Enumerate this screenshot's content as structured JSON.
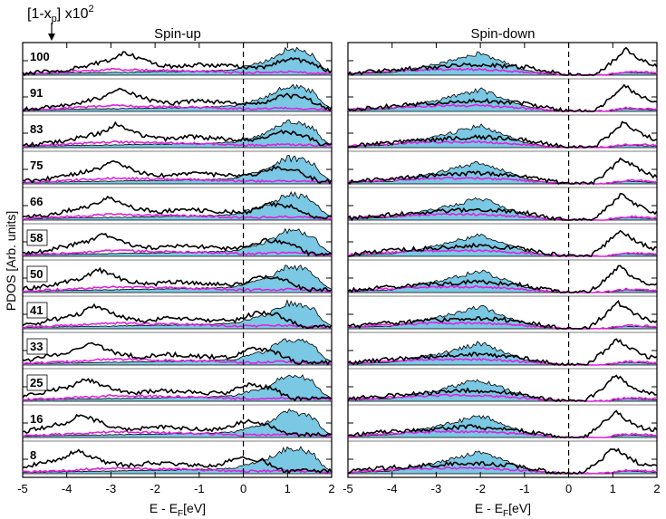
{
  "header": {
    "label_main": "[1-x",
    "label_sub": "p",
    "label_rest": "] x10",
    "label_sup": "2",
    "arrow": "down-arrow"
  },
  "ylabel": "PDOS  [Arb. units]",
  "xlabel": {
    "main": "E - E",
    "sub": "F",
    "rest": "[eV]"
  },
  "colors": {
    "fill": "#7ac8e3",
    "black_curve": "#000000",
    "magenta_curve": "#e020e0",
    "fermi_line": "#000000"
  },
  "chart_data": [
    {
      "type": "line",
      "title": "Spin-up",
      "xlim": [
        -5,
        2
      ],
      "xticks": [
        "-5",
        "-4",
        "-3",
        "-2",
        "-1",
        "0",
        "1",
        "2"
      ],
      "fermi_level": 0,
      "rows": [
        "100",
        "91",
        "83",
        "75",
        "66",
        "58",
        "50",
        "41",
        "33",
        "25",
        "16",
        "8"
      ],
      "boxed_rows": [
        "58",
        "50",
        "41",
        "33",
        "25"
      ],
      "series": [
        {
          "style": "filled",
          "description_points": [
            [
              -5,
              0.05
            ],
            [
              -3,
              0.1
            ],
            [
              -1,
              0.15
            ],
            [
              -0.2,
              0.2
            ],
            [
              0,
              0.3
            ],
            [
              0.5,
              0.5
            ],
            [
              0.8,
              0.8
            ],
            [
              1.0,
              0.95
            ],
            [
              1.3,
              0.9
            ],
            [
              1.6,
              0.7
            ],
            [
              1.8,
              0.3
            ],
            [
              2,
              0.1
            ]
          ]
        },
        {
          "style": "black",
          "description_points": [
            [
              -5,
              0.05
            ],
            [
              -4,
              0.2
            ],
            [
              -3,
              0.55
            ],
            [
              -2.7,
              0.85
            ],
            [
              -2,
              0.4
            ],
            [
              -1.5,
              0.3
            ],
            [
              -1,
              0.4
            ],
            [
              0,
              0.3
            ],
            [
              0.5,
              0.3
            ],
            [
              1.0,
              0.6
            ],
            [
              1.5,
              0.5
            ],
            [
              2,
              0.1
            ]
          ]
        },
        {
          "style": "magenta",
          "description_points": [
            [
              -5,
              0.1
            ],
            [
              -4,
              0.2
            ],
            [
              -3,
              0.35
            ],
            [
              -2,
              0.3
            ],
            [
              -1,
              0.25
            ],
            [
              0,
              0.15
            ],
            [
              1.0,
              0.2
            ],
            [
              2,
              0.1
            ]
          ]
        }
      ]
    },
    {
      "type": "line",
      "title": "Spin-down",
      "xlim": [
        -5,
        2
      ],
      "xticks": [
        "-5",
        "-4",
        "-3",
        "-2",
        "-1",
        "0",
        "1",
        "2"
      ],
      "fermi_level": 0,
      "rows": [
        "100",
        "91",
        "83",
        "75",
        "66",
        "58",
        "50",
        "41",
        "33",
        "25",
        "16",
        "8"
      ],
      "series": [
        {
          "style": "filled",
          "description_points": [
            [
              -5,
              0.05
            ],
            [
              -4,
              0.1
            ],
            [
              -3,
              0.4
            ],
            [
              -2.5,
              0.6
            ],
            [
              -2,
              0.8
            ],
            [
              -1.5,
              0.5
            ],
            [
              -1,
              0.2
            ],
            [
              -0.5,
              0.05
            ],
            [
              0,
              0
            ],
            [
              0.8,
              0
            ],
            [
              1.3,
              0.1
            ],
            [
              2,
              0.05
            ]
          ]
        },
        {
          "style": "black",
          "description_points": [
            [
              -5,
              0.05
            ],
            [
              -4,
              0.2
            ],
            [
              -3,
              0.3
            ],
            [
              -2,
              0.4
            ],
            [
              -1,
              0.3
            ],
            [
              -0.3,
              0.1
            ],
            [
              0,
              0
            ],
            [
              0.6,
              0
            ],
            [
              1.0,
              0.5
            ],
            [
              1.3,
              0.95
            ],
            [
              1.6,
              0.6
            ],
            [
              2,
              0.3
            ]
          ]
        },
        {
          "style": "magenta",
          "description_points": [
            [
              -5,
              0.1
            ],
            [
              -4,
              0.25
            ],
            [
              -3,
              0.35
            ],
            [
              -2,
              0.35
            ],
            [
              -1,
              0.2
            ],
            [
              0,
              0
            ],
            [
              0.8,
              0
            ],
            [
              1.3,
              0.2
            ],
            [
              2,
              0.15
            ]
          ]
        }
      ]
    }
  ]
}
